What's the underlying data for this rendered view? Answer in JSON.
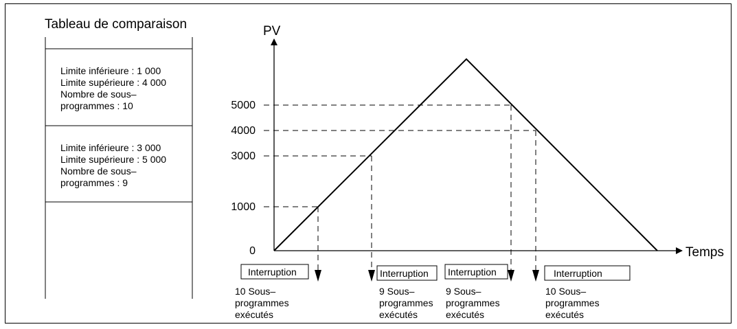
{
  "table": {
    "title": "Tableau de comparaison",
    "entries": [
      {
        "lines": [
          "Limite inférieure : 1 000",
          "Limite supérieure : 4 000",
          "Nombre de sous–",
          "programmes : 10"
        ]
      },
      {
        "lines": [
          "Limite inférieure : 3 000",
          "Limite supérieure : 5 000",
          "Nombre de sous–",
          "programmes : 9"
        ]
      }
    ]
  },
  "graph": {
    "y_axis_label": "PV",
    "x_axis_label": "Temps",
    "y_ticks": [
      "5000",
      "4000",
      "3000",
      "1000",
      "0"
    ],
    "interrupt_box_label": "Interruption",
    "events": [
      {
        "lines": [
          "10 Sous–",
          "programmes",
          "exécutés"
        ]
      },
      {
        "lines": [
          "9 Sous–",
          "programmes",
          "exécutés"
        ]
      },
      {
        "lines": [
          "9 Sous–",
          "programmes",
          "exécutés"
        ]
      },
      {
        "lines": [
          "10 Sous–",
          "programmes",
          "exécutés"
        ]
      }
    ]
  }
}
